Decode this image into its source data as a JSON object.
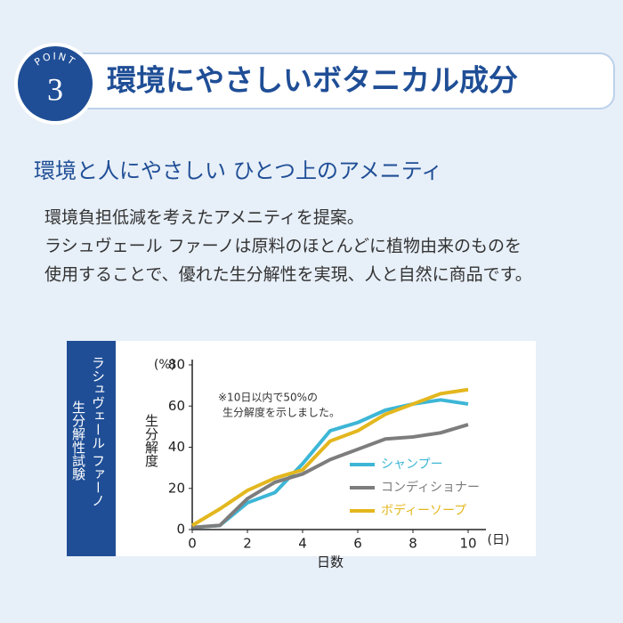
{
  "header": {
    "badge_word": "POINT",
    "badge_number": "3",
    "title": "環境にやさしいボタニカル成分"
  },
  "subtitle": "環境と人にやさしい ひとつ上のアメニティ",
  "body": [
    "環境負担低減を考えたアメニティを提案。",
    "ラシュヴェール ファーノは原料のほとんどに植物由来のものを",
    "使用することで、優れた生分解性を実現、人と自然に商品です。"
  ],
  "side_label": [
    "ラシュヴェール ファーノ",
    "生分解性試験"
  ],
  "chart_data": {
    "type": "line",
    "x_label": "日数",
    "x_unit": "(日)",
    "y_label": "生分解度",
    "y_unit": "(%)",
    "annotation": [
      "※10日以内で50%の",
      "生分解度を示しました。"
    ],
    "x": [
      0,
      1,
      2,
      3,
      4,
      5,
      6,
      7,
      8,
      9,
      10
    ],
    "series": [
      {
        "name": "シャンプー",
        "color": "#3db6d6",
        "values": [
          1,
          2,
          13,
          18,
          32,
          48,
          52,
          58,
          61,
          63,
          61
        ]
      },
      {
        "name": "コンディショナー",
        "color": "#7d7d7d",
        "values": [
          1,
          2,
          15,
          23,
          27,
          34,
          39,
          44,
          45,
          47,
          51
        ]
      },
      {
        "name": "ボディーソープ",
        "color": "#e3b71e",
        "values": [
          2,
          10,
          19,
          25,
          29,
          43,
          48,
          56,
          61,
          66,
          68
        ]
      }
    ],
    "xlim": [
      0,
      10
    ],
    "xticks": [
      0,
      2,
      4,
      6,
      8,
      10
    ],
    "ylim": [
      0,
      80
    ],
    "yticks": [
      0,
      20,
      40,
      60,
      80
    ],
    "grid": false
  }
}
